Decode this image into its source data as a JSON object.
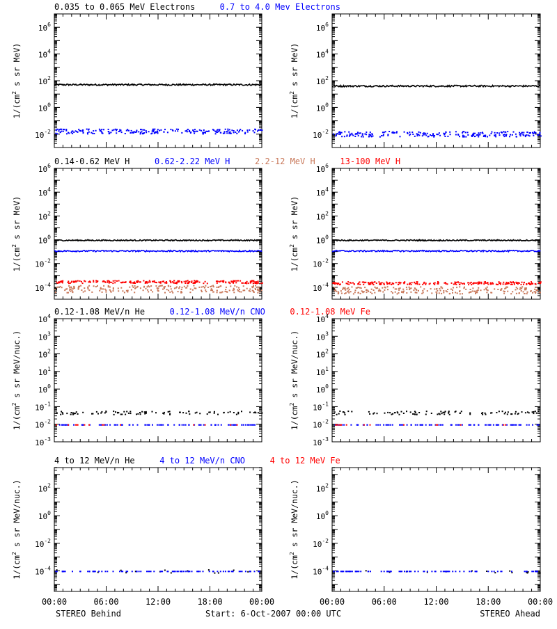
{
  "colors": {
    "black": "#000000",
    "blue": "#0000ff",
    "tan": "#c8785a",
    "red": "#ff0000"
  },
  "footer": {
    "left": "STEREO Behind",
    "center": "Start:  6-Oct-2007 00:00 UTC",
    "right": "STEREO Ahead"
  },
  "xticks": [
    "00:00",
    "06:00",
    "12:00",
    "18:00",
    "00:00"
  ],
  "chart_data": [
    {
      "type": "scatter",
      "row": "electrons",
      "spacecraft": "STEREO Behind",
      "ylabel_parts": [
        "1/(cm",
        "2",
        " s sr MeV)"
      ],
      "scale": "log",
      "ylim_exp": [
        -3,
        7
      ],
      "yticks": [
        {
          "base": "10",
          "exp": "6"
        },
        {
          "base": "10",
          "exp": "4"
        },
        {
          "base": "10",
          "exp": "2"
        },
        {
          "base": "10",
          "exp": "0"
        },
        {
          "base": "10",
          "exp": "-2"
        }
      ],
      "title_parts": [
        {
          "text": "0.035 to 0.065 MeV Electrons",
          "color": "black"
        },
        {
          "text": "0.7 to 4.0 Mev Electrons",
          "color": "blue"
        }
      ],
      "xlim_hours": [
        0,
        24
      ],
      "series": [
        {
          "name": "0.035 to 0.065 MeV Electrons",
          "color": "black",
          "mode": "line",
          "level_exp": 1.7,
          "jitter": 0.06
        },
        {
          "name": "0.7 to 4.0 Mev Electrons",
          "color": "blue",
          "mode": "dots",
          "level_exp": -1.75,
          "jitter": 0.18
        }
      ]
    },
    {
      "type": "scatter",
      "row": "electrons",
      "spacecraft": "STEREO Ahead",
      "ylabel_parts": [
        "1/(cm",
        "2",
        " s sr MeV)"
      ],
      "scale": "log",
      "ylim_exp": [
        -3,
        7
      ],
      "yticks": [
        {
          "base": "10",
          "exp": "6"
        },
        {
          "base": "10",
          "exp": "4"
        },
        {
          "base": "10",
          "exp": "2"
        },
        {
          "base": "10",
          "exp": "0"
        },
        {
          "base": "10",
          "exp": "-2"
        }
      ],
      "title_parts": [],
      "xlim_hours": [
        0,
        24
      ],
      "series": [
        {
          "name": "0.035 to 0.065 MeV Electrons",
          "color": "black",
          "mode": "line",
          "level_exp": 1.6,
          "jitter": 0.06
        },
        {
          "name": "0.7 to 4.0 Mev Electrons",
          "color": "blue",
          "mode": "dots",
          "level_exp": -1.95,
          "jitter": 0.2
        }
      ]
    },
    {
      "type": "scatter",
      "row": "protons",
      "spacecraft": "STEREO Behind",
      "ylabel_parts": [
        "1/(cm",
        "2",
        " s sr MeV)"
      ],
      "scale": "log",
      "ylim_exp": [
        -5,
        6
      ],
      "yticks": [
        {
          "base": "10",
          "exp": "6"
        },
        {
          "base": "10",
          "exp": "4"
        },
        {
          "base": "10",
          "exp": "2"
        },
        {
          "base": "10",
          "exp": "0"
        },
        {
          "base": "10",
          "exp": "-2"
        },
        {
          "base": "10",
          "exp": "-4"
        }
      ],
      "title_parts": [
        {
          "text": "0.14-0.62 MeV H",
          "color": "black"
        },
        {
          "text": "0.62-2.22 MeV H",
          "color": "blue"
        },
        {
          "text": "2.2-12 MeV H",
          "color": "tan"
        },
        {
          "text": "13-100 MeV H",
          "color": "red"
        }
      ],
      "xlim_hours": [
        0,
        24
      ],
      "series": [
        {
          "name": "0.14-0.62 MeV H",
          "color": "black",
          "mode": "line",
          "level_exp": -0.05,
          "jitter": 0.05
        },
        {
          "name": "0.62-2.22 MeV H",
          "color": "blue",
          "mode": "line",
          "level_exp": -0.95,
          "jitter": 0.06
        },
        {
          "name": "2.2-12 MeV H",
          "color": "tan",
          "mode": "dots",
          "level_exp": -4.1,
          "jitter": 0.3
        },
        {
          "name": "13-100 MeV H",
          "color": "red",
          "mode": "dots",
          "level_exp": -3.5,
          "jitter": 0.12
        }
      ]
    },
    {
      "type": "scatter",
      "row": "protons",
      "spacecraft": "STEREO Ahead",
      "ylabel_parts": [
        "1/(cm",
        "2",
        " s sr MeV)"
      ],
      "scale": "log",
      "ylim_exp": [
        -5,
        6
      ],
      "yticks": [
        {
          "base": "10",
          "exp": "6"
        },
        {
          "base": "10",
          "exp": "4"
        },
        {
          "base": "10",
          "exp": "2"
        },
        {
          "base": "10",
          "exp": "0"
        },
        {
          "base": "10",
          "exp": "-2"
        },
        {
          "base": "10",
          "exp": "-4"
        }
      ],
      "title_parts": [],
      "xlim_hours": [
        0,
        24
      ],
      "series": [
        {
          "name": "0.14-0.62 MeV H",
          "color": "black",
          "mode": "line",
          "level_exp": -0.05,
          "jitter": 0.05
        },
        {
          "name": "0.62-2.22 MeV H",
          "color": "blue",
          "mode": "line",
          "level_exp": -0.95,
          "jitter": 0.06
        },
        {
          "name": "2.2-12 MeV H",
          "color": "tan",
          "mode": "dots",
          "level_exp": -4.2,
          "jitter": 0.3
        },
        {
          "name": "13-100 MeV H",
          "color": "red",
          "mode": "dots",
          "level_exp": -3.6,
          "jitter": 0.12
        }
      ]
    },
    {
      "type": "scatter",
      "row": "heavy-low",
      "spacecraft": "STEREO Behind",
      "ylabel_parts": [
        "1/(cm",
        "2",
        " s sr MeV/nuc.)"
      ],
      "scale": "log",
      "ylim_exp": [
        -3,
        4
      ],
      "yticks": [
        {
          "base": "10",
          "exp": "4"
        },
        {
          "base": "10",
          "exp": "3"
        },
        {
          "base": "10",
          "exp": "2"
        },
        {
          "base": "10",
          "exp": "1"
        },
        {
          "base": "10",
          "exp": "0"
        },
        {
          "base": "10",
          "exp": "-1"
        },
        {
          "base": "10",
          "exp": "-2"
        },
        {
          "base": "10",
          "exp": "-3"
        }
      ],
      "title_parts": [
        {
          "text": "0.12-1.08 MeV/n He",
          "color": "black"
        },
        {
          "text": "0.12-1.08 MeV/n CNO",
          "color": "blue"
        },
        {
          "text": "0.12-1.08 MeV Fe",
          "color": "red"
        }
      ],
      "xlim_hours": [
        0,
        24
      ],
      "series": [
        {
          "name": "0.12-1.08 MeV/n He",
          "color": "black",
          "mode": "sparse",
          "level_exp": -1.32,
          "jitter": 0.1
        },
        {
          "name": "0.12-1.08 MeV/n CNO",
          "color": "blue",
          "mode": "sparse",
          "level_exp": -2.0,
          "jitter": 0.0
        },
        {
          "name": "0.12-1.08 MeV Fe",
          "color": "red",
          "mode": "rare",
          "level_exp": -2.0,
          "jitter": 0.0
        }
      ]
    },
    {
      "type": "scatter",
      "row": "heavy-low",
      "spacecraft": "STEREO Ahead",
      "ylabel_parts": [
        "1/(cm",
        "2",
        " s sr MeV/nuc.)"
      ],
      "scale": "log",
      "ylim_exp": [
        -3,
        4
      ],
      "yticks": [
        {
          "base": "10",
          "exp": "4"
        },
        {
          "base": "10",
          "exp": "3"
        },
        {
          "base": "10",
          "exp": "2"
        },
        {
          "base": "10",
          "exp": "1"
        },
        {
          "base": "10",
          "exp": "0"
        },
        {
          "base": "10",
          "exp": "-1"
        },
        {
          "base": "10",
          "exp": "-2"
        },
        {
          "base": "10",
          "exp": "-3"
        }
      ],
      "title_parts": [],
      "xlim_hours": [
        0,
        24
      ],
      "series": [
        {
          "name": "0.12-1.08 MeV/n He",
          "color": "black",
          "mode": "sparse",
          "level_exp": -1.32,
          "jitter": 0.1
        },
        {
          "name": "0.12-1.08 MeV/n CNO",
          "color": "blue",
          "mode": "sparse",
          "level_exp": -2.0,
          "jitter": 0.0
        },
        {
          "name": "0.12-1.08 MeV Fe",
          "color": "red",
          "mode": "rare",
          "level_exp": -2.0,
          "jitter": 0.0
        }
      ]
    },
    {
      "type": "scatter",
      "row": "heavy-high",
      "spacecraft": "STEREO Behind",
      "ylabel_parts": [
        "1/(cm",
        "2",
        " s sr MeV/nuc.)"
      ],
      "scale": "log",
      "ylim_exp": [
        -5.5,
        3.5
      ],
      "yticks": [
        {
          "base": "10",
          "exp": "2"
        },
        {
          "base": "10",
          "exp": "0"
        },
        {
          "base": "10",
          "exp": "-2"
        },
        {
          "base": "10",
          "exp": "-4"
        }
      ],
      "title_parts": [
        {
          "text": "4 to 12 MeV/n He",
          "color": "black"
        },
        {
          "text": "4 to 12 MeV/n CNO",
          "color": "blue"
        },
        {
          "text": "4 to 12 MeV Fe",
          "color": "red"
        }
      ],
      "xlim_hours": [
        0,
        24
      ],
      "series": [
        {
          "name": "4 to 12 MeV/n He",
          "color": "black",
          "mode": "rare",
          "level_exp": -4.0,
          "jitter": 0.12
        },
        {
          "name": "4 to 12 MeV/n CNO",
          "color": "blue",
          "mode": "sparse",
          "level_exp": -4.0,
          "jitter": 0.0
        }
      ]
    },
    {
      "type": "scatter",
      "row": "heavy-high",
      "spacecraft": "STEREO Ahead",
      "ylabel_parts": [
        "1/(cm",
        "2",
        " s sr MeV/nuc.)"
      ],
      "scale": "log",
      "ylim_exp": [
        -5.5,
        3.5
      ],
      "yticks": [
        {
          "base": "10",
          "exp": "2"
        },
        {
          "base": "10",
          "exp": "0"
        },
        {
          "base": "10",
          "exp": "-2"
        },
        {
          "base": "10",
          "exp": "-4"
        }
      ],
      "title_parts": [],
      "xlim_hours": [
        0,
        24
      ],
      "series": [
        {
          "name": "4 to 12 MeV/n He",
          "color": "black",
          "mode": "rare",
          "level_exp": -4.0,
          "jitter": 0.12
        },
        {
          "name": "4 to 12 MeV/n CNO",
          "color": "blue",
          "mode": "sparse",
          "level_exp": -4.0,
          "jitter": 0.0
        }
      ]
    }
  ]
}
